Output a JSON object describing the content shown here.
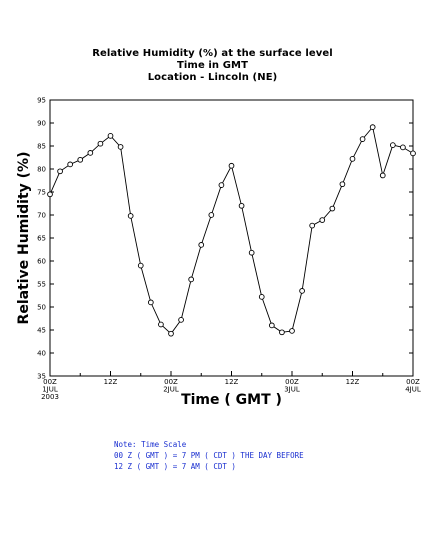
{
  "chart_data": {
    "type": "line",
    "title": "Relative Humidity (%) at the surface level",
    "subtitle_lines": [
      "Time in GMT",
      "Location - Lincoln (NE)"
    ],
    "xlabel": "Time ( GMT )",
    "ylabel": "Relative Humidity (%)",
    "ylim": [
      35,
      95
    ],
    "yticks": [
      35,
      40,
      45,
      50,
      55,
      60,
      65,
      70,
      75,
      80,
      85,
      90,
      95
    ],
    "xlim_hours": [
      0,
      72
    ],
    "xticks": [
      {
        "hour": 0,
        "lines": [
          "00Z",
          "1JUL",
          "2003"
        ]
      },
      {
        "hour": 12,
        "lines": [
          "12Z"
        ]
      },
      {
        "hour": 24,
        "lines": [
          "00Z",
          "2JUL"
        ]
      },
      {
        "hour": 36,
        "lines": [
          "12Z"
        ]
      },
      {
        "hour": 48,
        "lines": [
          "00Z",
          "3JUL"
        ]
      },
      {
        "hour": 60,
        "lines": [
          "12Z"
        ]
      },
      {
        "hour": 72,
        "lines": [
          "00Z",
          "4JUL"
        ]
      }
    ],
    "grid": false,
    "series": [
      {
        "color": "#000000",
        "marker": "open-circle",
        "x_hours": [
          0,
          2,
          4,
          6,
          8,
          10,
          12,
          14,
          16,
          18,
          20,
          22,
          24,
          26,
          28,
          30,
          32,
          34,
          36,
          38,
          40,
          42,
          44,
          46,
          48,
          50,
          52,
          54,
          56,
          58,
          60,
          62,
          64,
          66,
          68,
          70,
          72
        ],
        "values": [
          74.5,
          79.5,
          81,
          82,
          83.5,
          85.5,
          87.2,
          84.8,
          69.8,
          59,
          51,
          46.2,
          44.2,
          47.2,
          56,
          63.5,
          70,
          76.5,
          80.7,
          72,
          61.8,
          52.2,
          46,
          44.5,
          44.8,
          53.5,
          67.7,
          68.9,
          71.4,
          76.7,
          82.2,
          86.5,
          89.1,
          78.6,
          85.2,
          84.7,
          83.4
        ]
      }
    ]
  },
  "notes": [
    "Note: Time Scale",
    "00 Z ( GMT ) = 7 PM ( CDT ) THE DAY BEFORE",
    "12 Z ( GMT ) = 7 AM ( CDT )"
  ]
}
